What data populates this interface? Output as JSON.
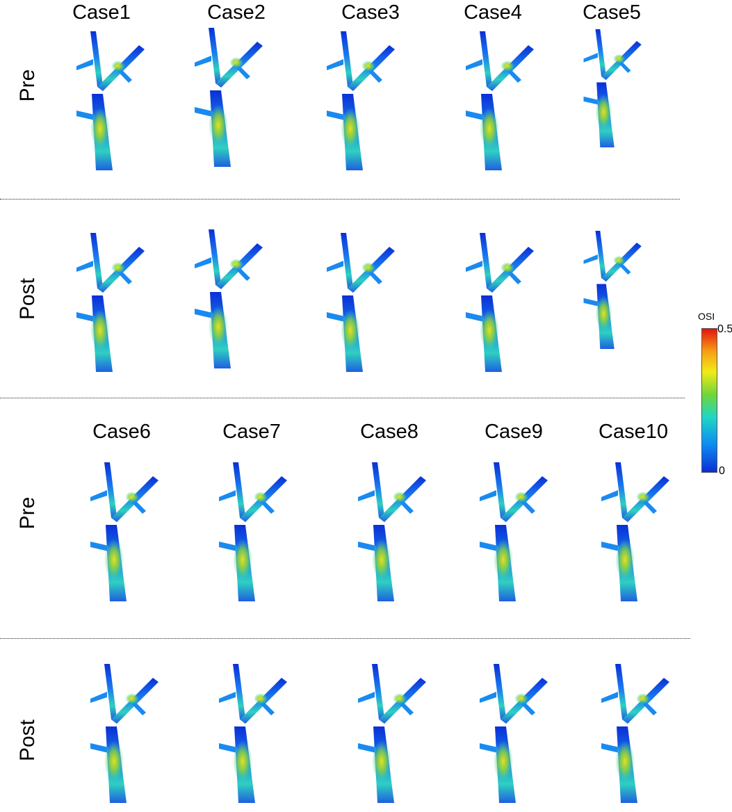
{
  "top_group": {
    "cases": [
      "Case1",
      "Case2",
      "Case3",
      "Case4",
      "Case5"
    ],
    "rows": [
      "Pre",
      "Post"
    ]
  },
  "bottom_group": {
    "cases": [
      "Case6",
      "Case7",
      "Case8",
      "Case9",
      "Case10"
    ],
    "rows": [
      "Pre",
      "Post"
    ]
  },
  "colorbar": {
    "title": "OSI",
    "max_label": "0.5",
    "min_label": "0",
    "colors": [
      "#e4140f",
      "#f7a013",
      "#f2ea18",
      "#6fd63a",
      "#1fd6c6",
      "#0e8ff0",
      "#0a2fd6"
    ]
  }
}
